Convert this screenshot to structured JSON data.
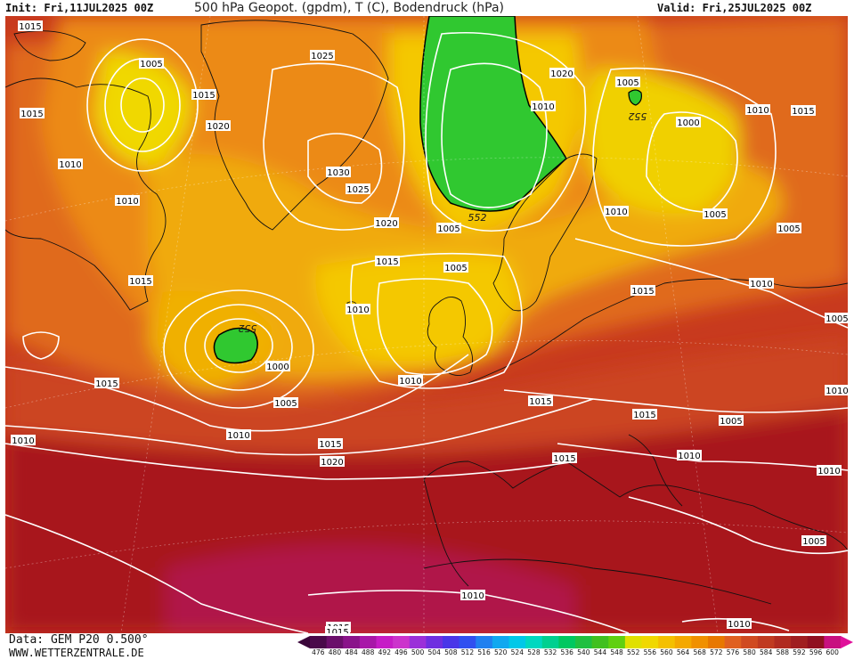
{
  "header": {
    "init": "Init: Fri,11JUL2025 00Z",
    "title": "500 hPa Geopot. (gpdm), T (C), Bodendruck (hPa)",
    "valid": "Valid: Fri,25JUL2025 00Z"
  },
  "footer": {
    "data_source": "Data: GEM P20 0.500°",
    "website": "WWW.WETTERZENTRALE.DE"
  },
  "colorbar": {
    "labels": [
      "476",
      "480",
      "484",
      "488",
      "492",
      "496",
      "500",
      "504",
      "508",
      "512",
      "516",
      "520",
      "524",
      "528",
      "532",
      "536",
      "540",
      "544",
      "548",
      "552",
      "556",
      "560",
      "564",
      "568",
      "572",
      "576",
      "580",
      "584",
      "588",
      "592",
      "596",
      "600"
    ],
    "colors": [
      "#4a0a4a",
      "#6b0f6b",
      "#8a138a",
      "#a818a8",
      "#c61dc6",
      "#cc33cc",
      "#9b30d9",
      "#6f2fe0",
      "#4a36e8",
      "#3050f0",
      "#2080f0",
      "#10a8f0",
      "#00c8e8",
      "#00d8c0",
      "#00d090",
      "#00c860",
      "#20c040",
      "#40c020",
      "#60d010",
      "#e0e000",
      "#f0d800",
      "#f4c000",
      "#f4a800",
      "#f09000",
      "#e87800",
      "#e06020",
      "#d04a20",
      "#c03a20",
      "#b02a20",
      "#a01e20",
      "#901020",
      "#c81080"
    ]
  },
  "isobar_labels": [
    {
      "text": "1015"
    },
    {
      "text": "1005"
    },
    {
      "text": "1015"
    },
    {
      "text": "1015"
    },
    {
      "text": "1020"
    },
    {
      "text": "1010"
    },
    {
      "text": "1010"
    },
    {
      "text": "1025"
    },
    {
      "text": "1030"
    },
    {
      "text": "1025"
    },
    {
      "text": "1020"
    },
    {
      "text": "1015"
    },
    {
      "text": "1015"
    },
    {
      "text": "1010"
    },
    {
      "text": "1005"
    },
    {
      "text": "1010"
    },
    {
      "text": "1000"
    },
    {
      "text": "1005"
    },
    {
      "text": "1010"
    },
    {
      "text": "1015"
    },
    {
      "text": "1020"
    },
    {
      "text": "1015"
    },
    {
      "text": "1005"
    },
    {
      "text": "1010"
    },
    {
      "text": "1015"
    },
    {
      "text": "1010"
    },
    {
      "text": "1015"
    },
    {
      "text": "1010"
    },
    {
      "text": "1015"
    },
    {
      "text": "1015"
    },
    {
      "text": "1005"
    },
    {
      "text": "1010"
    },
    {
      "text": "1005"
    },
    {
      "text": "1015"
    },
    {
      "text": "1010"
    },
    {
      "text": "1005"
    },
    {
      "text": "1000"
    },
    {
      "text": "1005"
    },
    {
      "text": "1010"
    },
    {
      "text": "1010"
    },
    {
      "text": "1005"
    },
    {
      "text": "1010"
    },
    {
      "text": "1005"
    },
    {
      "text": "1010"
    },
    {
      "text": "1010"
    },
    {
      "text": "1005"
    },
    {
      "text": "1015"
    },
    {
      "text": "1020"
    },
    {
      "text": "1015"
    }
  ],
  "geopot_labels": [
    {
      "text": "552"
    },
    {
      "text": "552"
    },
    {
      "text": "552"
    }
  ]
}
